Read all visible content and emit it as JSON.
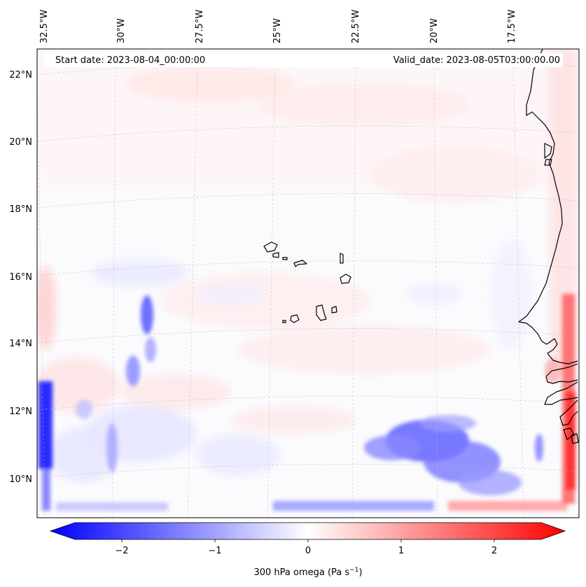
{
  "header": {
    "start_date": "Start date: 2023-08-04_00:00:00",
    "valid_date": "Valid_date: 2023-08-05T03:00:00.00"
  },
  "map": {
    "projection": "lambert-conformal",
    "longitude_labels": [
      "32.5°W",
      "30°W",
      "27.5°W",
      "25°W",
      "22.5°W",
      "20°W",
      "17.5°W"
    ],
    "latitude_labels": [
      "22°N",
      "20°N",
      "18°N",
      "16°N",
      "14°N",
      "12°N",
      "10°N"
    ],
    "gridlines": "dashed",
    "land_outline_color": "#000000",
    "features": [
      "African coastline",
      "Cape Verde islands"
    ]
  },
  "colorbar": {
    "label": "300 hPa omega (Pa s",
    "label_superscript": "−1",
    "label_suffix": ")",
    "ticks": [
      "−2",
      "−1",
      "0",
      "1",
      "2"
    ],
    "range": [
      -2.7,
      2.7
    ],
    "extend": "both",
    "colormap": "bwr",
    "color_min": "#0000ff",
    "color_mid": "#ffffff",
    "color_max": "#ff0000"
  }
}
